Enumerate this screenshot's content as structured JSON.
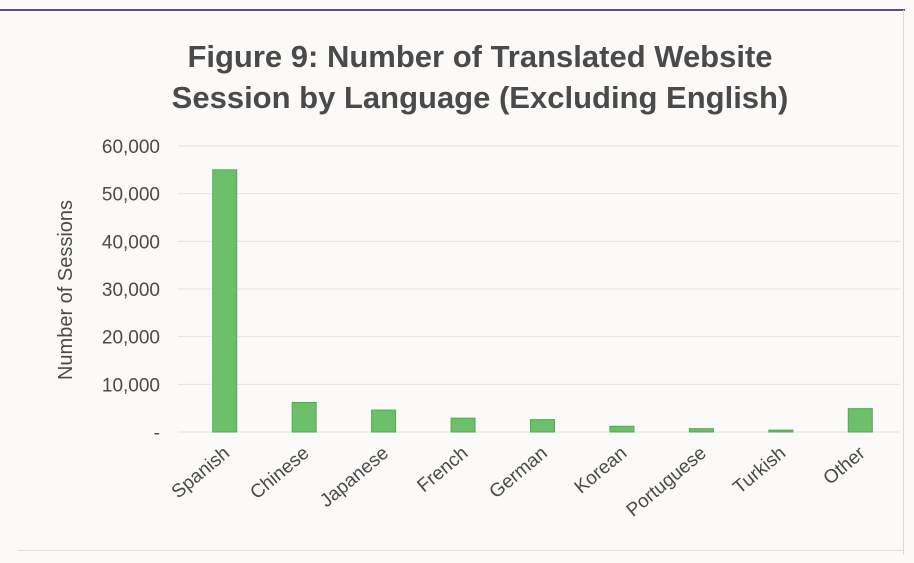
{
  "chart_data": {
    "type": "bar",
    "title_lines": [
      "Figure 9: Number of Translated Website",
      "Session by Language (Excluding English)"
    ],
    "ylabel": "Number of Sessions",
    "xlabel": "",
    "categories": [
      "Spanish",
      "Chinese",
      "Japanese",
      "French",
      "German",
      "Korean",
      "Portuguese",
      "Turkish",
      "Other"
    ],
    "values": [
      55000,
      6200,
      4600,
      2900,
      2600,
      1200,
      700,
      400,
      4900
    ],
    "ylim": [
      0,
      60000
    ],
    "yticks": [
      0,
      10000,
      20000,
      30000,
      40000,
      50000,
      60000
    ],
    "ytick_labels": [
      "-",
      "10,000",
      "20,000",
      "30,000",
      "40,000",
      "50,000",
      "60,000"
    ],
    "grid": true,
    "legend": "none",
    "bar_color": "#6cc06a",
    "bar_edge_color": "#58a656",
    "grid_color": "#e4e3e0"
  }
}
